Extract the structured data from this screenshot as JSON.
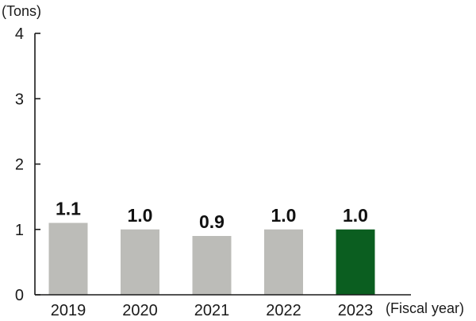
{
  "chart_data": {
    "type": "bar",
    "ylabel": "(Tons)",
    "xlabel": "(Fiscal year)",
    "categories": [
      "2019",
      "2020",
      "2021",
      "2022",
      "2023"
    ],
    "values": [
      1.1,
      1.0,
      0.9,
      1.0,
      1.0
    ],
    "value_labels": [
      "1.1",
      "1.0",
      "0.9",
      "1.0",
      "1.0"
    ],
    "ylim": [
      0,
      4
    ],
    "yticks": [
      "0",
      "1",
      "2",
      "3",
      "4"
    ],
    "grid": false,
    "legend": "none",
    "colors": {
      "bar": "#bcbcb8",
      "highlight_bar": "#0b5e20",
      "highlight_index": 4
    }
  }
}
